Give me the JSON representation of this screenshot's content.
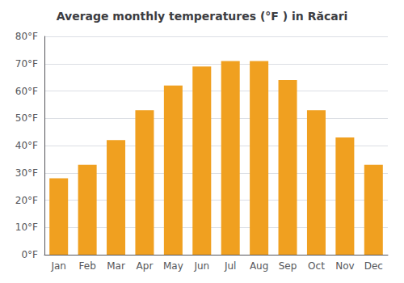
{
  "chart_data": {
    "type": "bar",
    "title": "Average monthly temperatures (°F ) in Răcari",
    "categories": [
      "Jan",
      "Feb",
      "Mar",
      "Apr",
      "May",
      "Jun",
      "Jul",
      "Aug",
      "Sep",
      "Oct",
      "Nov",
      "Dec"
    ],
    "values": [
      28,
      33,
      42,
      53,
      62,
      69,
      71,
      71,
      64,
      53,
      43,
      33
    ],
    "color": "#F0A020",
    "ylim": [
      0,
      80
    ],
    "yticks": [
      {
        "value": 0,
        "label": "0°F"
      },
      {
        "value": 10,
        "label": "10°F"
      },
      {
        "value": 20,
        "label": "20°F"
      },
      {
        "value": 30,
        "label": "30°F"
      },
      {
        "value": 40,
        "label": "40°F"
      },
      {
        "value": 50,
        "label": "50°F"
      },
      {
        "value": 60,
        "label": "60°F"
      },
      {
        "value": 70,
        "label": "70°F"
      },
      {
        "value": 80,
        "label": "80°F"
      }
    ],
    "grid": true
  }
}
